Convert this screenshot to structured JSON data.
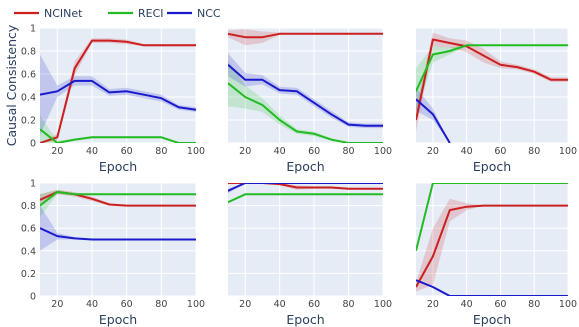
{
  "figure": {
    "ylabel": "Causal Consistency",
    "xlabel": "Epoch",
    "x_ticks": [
      20,
      40,
      60,
      80,
      100
    ],
    "y_ticks": [
      0,
      0.2,
      0.4,
      0.6,
      0.8,
      1
    ],
    "y_tick_labels": [
      "0",
      "0.2",
      "0.4",
      "0.6",
      "0.8",
      "1"
    ],
    "xlim": [
      10,
      100
    ],
    "ylim": [
      0,
      1
    ],
    "grid": true,
    "legend_position": "top-left",
    "colors": {
      "plot_bg": "#e5ecf6",
      "grid": "#ffffff"
    }
  },
  "legend": [
    {
      "name": "NCINet",
      "color": "#cc1f1f"
    },
    {
      "name": "RECI",
      "color": "#22bb22"
    },
    {
      "name": "NCC",
      "color": "#1a1acc"
    }
  ],
  "chart_data": [
    {
      "type": "line",
      "panel": "row1-col1",
      "show_ylabel": true,
      "show_y_ticks": true,
      "series": [
        {
          "name": "NCINet",
          "color": "#cc1f1f",
          "x": [
            10,
            20,
            30,
            40,
            50,
            60,
            70,
            80,
            90,
            100
          ],
          "y": [
            0.0,
            0.05,
            0.65,
            0.89,
            0.89,
            0.88,
            0.85,
            0.85,
            0.85,
            0.85
          ],
          "band": [
            0.0,
            0.03,
            0.06,
            0.02,
            0.02,
            0.02,
            0.01,
            0.01,
            0.01,
            0.01
          ]
        },
        {
          "name": "RECI",
          "color": "#22bb22",
          "x": [
            10,
            20,
            30,
            40,
            50,
            60,
            70,
            80,
            90,
            100
          ],
          "y": [
            0.12,
            0.0,
            0.03,
            0.05,
            0.05,
            0.05,
            0.05,
            0.05,
            0.0,
            0.0
          ],
          "band": [
            0.12,
            0.02,
            0.01,
            0.01,
            0.01,
            0.01,
            0.01,
            0.01,
            0.0,
            0.0
          ]
        },
        {
          "name": "NCC",
          "color": "#1a1acc",
          "x": [
            10,
            20,
            30,
            40,
            50,
            60,
            70,
            80,
            90,
            100
          ],
          "y": [
            0.42,
            0.45,
            0.54,
            0.54,
            0.44,
            0.45,
            0.42,
            0.39,
            0.31,
            0.29
          ],
          "band": [
            0.35,
            0.05,
            0.04,
            0.04,
            0.03,
            0.03,
            0.03,
            0.03,
            0.02,
            0.02
          ]
        }
      ]
    },
    {
      "type": "line",
      "panel": "row1-col2",
      "show_ylabel": false,
      "show_y_ticks": false,
      "series": [
        {
          "name": "NCINet",
          "color": "#cc1f1f",
          "x": [
            10,
            20,
            30,
            40,
            50,
            60,
            70,
            80,
            90,
            100
          ],
          "y": [
            0.95,
            0.92,
            0.92,
            0.95,
            0.95,
            0.95,
            0.95,
            0.95,
            0.95,
            0.95
          ],
          "band": [
            0.03,
            0.07,
            0.05,
            0.01,
            0.0,
            0.0,
            0.0,
            0.0,
            0.0,
            0.0
          ]
        },
        {
          "name": "RECI",
          "color": "#22bb22",
          "x": [
            10,
            20,
            30,
            40,
            50,
            60,
            70,
            80,
            90,
            100
          ],
          "y": [
            0.52,
            0.4,
            0.33,
            0.2,
            0.1,
            0.08,
            0.03,
            0.0,
            0.0,
            0.0
          ],
          "band": [
            0.2,
            0.1,
            0.06,
            0.04,
            0.02,
            0.02,
            0.01,
            0.0,
            0.0,
            0.0
          ]
        },
        {
          "name": "NCC",
          "color": "#1a1acc",
          "x": [
            10,
            20,
            30,
            40,
            50,
            60,
            70,
            80,
            90,
            100
          ],
          "y": [
            0.68,
            0.55,
            0.55,
            0.46,
            0.45,
            0.35,
            0.25,
            0.16,
            0.15,
            0.15
          ],
          "band": [
            0.1,
            0.06,
            0.04,
            0.03,
            0.03,
            0.03,
            0.03,
            0.02,
            0.02,
            0.02
          ]
        }
      ]
    },
    {
      "type": "line",
      "panel": "row1-col3",
      "show_ylabel": false,
      "show_y_ticks": false,
      "series": [
        {
          "name": "NCINet",
          "color": "#cc1f1f",
          "x": [
            10,
            20,
            30,
            40,
            50,
            60,
            70,
            80,
            90,
            100
          ],
          "y": [
            0.2,
            0.9,
            0.87,
            0.84,
            0.76,
            0.68,
            0.66,
            0.62,
            0.55,
            0.55
          ],
          "band": [
            0.1,
            0.06,
            0.04,
            0.05,
            0.06,
            0.03,
            0.02,
            0.02,
            0.02,
            0.02
          ]
        },
        {
          "name": "RECI",
          "color": "#22bb22",
          "x": [
            10,
            20,
            30,
            40,
            50,
            60,
            70,
            80,
            90,
            100
          ],
          "y": [
            0.45,
            0.77,
            0.8,
            0.85,
            0.85,
            0.85,
            0.85,
            0.85,
            0.85,
            0.85
          ],
          "band": [
            0.2,
            0.07,
            0.03,
            0.01,
            0.0,
            0.0,
            0.0,
            0.0,
            0.0,
            0.0
          ]
        },
        {
          "name": "NCC",
          "color": "#1a1acc",
          "x": [
            10,
            20,
            30
          ],
          "y": [
            0.38,
            0.25,
            0.0
          ],
          "band": [
            0.1,
            0.05,
            0.0
          ]
        }
      ]
    },
    {
      "type": "line",
      "panel": "row2-col1",
      "show_ylabel": false,
      "show_y_ticks": true,
      "series": [
        {
          "name": "NCINet",
          "color": "#cc1f1f",
          "x": [
            10,
            20,
            30,
            40,
            50,
            60,
            70,
            80,
            90,
            100
          ],
          "y": [
            0.85,
            0.92,
            0.9,
            0.86,
            0.81,
            0.8,
            0.8,
            0.8,
            0.8,
            0.8
          ],
          "band": [
            0.05,
            0.02,
            0.02,
            0.02,
            0.01,
            0.0,
            0.0,
            0.0,
            0.0,
            0.0
          ]
        },
        {
          "name": "RECI",
          "color": "#22bb22",
          "x": [
            10,
            20,
            30,
            40,
            50,
            60,
            70,
            80,
            90,
            100
          ],
          "y": [
            0.8,
            0.92,
            0.9,
            0.9,
            0.9,
            0.9,
            0.9,
            0.9,
            0.9,
            0.9
          ],
          "band": [
            0.1,
            0.02,
            0.01,
            0.0,
            0.0,
            0.0,
            0.0,
            0.0,
            0.0,
            0.0
          ]
        },
        {
          "name": "NCC",
          "color": "#1a1acc",
          "x": [
            10,
            20,
            30,
            40,
            50,
            60,
            70,
            80,
            90,
            100
          ],
          "y": [
            0.6,
            0.53,
            0.51,
            0.5,
            0.5,
            0.5,
            0.5,
            0.5,
            0.5,
            0.5
          ],
          "band": [
            0.2,
            0.03,
            0.01,
            0.0,
            0.0,
            0.0,
            0.0,
            0.0,
            0.0,
            0.0
          ]
        }
      ]
    },
    {
      "type": "line",
      "panel": "row2-col2",
      "show_ylabel": false,
      "show_y_ticks": false,
      "series": [
        {
          "name": "NCINet",
          "color": "#cc1f1f",
          "x": [
            10,
            20,
            30,
            40,
            50,
            60,
            70,
            80,
            90,
            100
          ],
          "y": [
            1.0,
            1.0,
            1.0,
            0.99,
            0.96,
            0.96,
            0.96,
            0.95,
            0.95,
            0.95
          ],
          "band": [
            0.0,
            0.0,
            0.0,
            0.01,
            0.02,
            0.01,
            0.01,
            0.01,
            0.0,
            0.0
          ]
        },
        {
          "name": "RECI",
          "color": "#22bb22",
          "x": [
            10,
            20,
            30,
            40,
            50,
            60,
            70,
            80,
            90,
            100
          ],
          "y": [
            0.83,
            0.9,
            0.9,
            0.9,
            0.9,
            0.9,
            0.9,
            0.9,
            0.9,
            0.9
          ],
          "band": [
            0.0,
            0.0,
            0.0,
            0.0,
            0.0,
            0.0,
            0.0,
            0.0,
            0.0,
            0.0
          ]
        },
        {
          "name": "NCC",
          "color": "#1a1acc",
          "x": [
            10,
            20,
            30,
            40,
            50,
            60,
            70,
            80,
            90,
            100
          ],
          "y": [
            0.93,
            1.0,
            1.0,
            1.0,
            1.0,
            1.0,
            1.0,
            1.0,
            1.0,
            1.0
          ],
          "band": [
            0.02,
            0.0,
            0.0,
            0.0,
            0.0,
            0.0,
            0.0,
            0.0,
            0.0,
            0.0
          ]
        }
      ]
    },
    {
      "type": "line",
      "panel": "row2-col3",
      "show_ylabel": false,
      "show_y_ticks": false,
      "series": [
        {
          "name": "NCINet",
          "color": "#cc1f1f",
          "x": [
            10,
            20,
            30,
            40,
            50,
            60,
            70,
            80,
            90,
            100
          ],
          "y": [
            0.08,
            0.35,
            0.76,
            0.79,
            0.8,
            0.8,
            0.8,
            0.8,
            0.8,
            0.8
          ],
          "band": [
            0.04,
            0.25,
            0.1,
            0.03,
            0.0,
            0.0,
            0.0,
            0.0,
            0.0,
            0.0
          ]
        },
        {
          "name": "RECI",
          "color": "#22bb22",
          "x": [
            10,
            20,
            30,
            40,
            50,
            60,
            70,
            80,
            90,
            100
          ],
          "y": [
            0.4,
            1.0,
            1.0,
            1.0,
            1.0,
            1.0,
            1.0,
            1.0,
            1.0,
            1.0
          ],
          "band": [
            0.0,
            0.0,
            0.0,
            0.0,
            0.0,
            0.0,
            0.0,
            0.0,
            0.0,
            0.0
          ]
        },
        {
          "name": "NCC",
          "color": "#1a1acc",
          "x": [
            10,
            20,
            30,
            40,
            50,
            60,
            70,
            80,
            90,
            100
          ],
          "y": [
            0.14,
            0.08,
            0.0,
            0.0,
            0.0,
            0.0,
            0.0,
            0.0,
            0.0,
            0.0
          ],
          "band": [
            0.0,
            0.0,
            0.0,
            0.0,
            0.0,
            0.0,
            0.0,
            0.0,
            0.0,
            0.0
          ]
        }
      ]
    }
  ]
}
